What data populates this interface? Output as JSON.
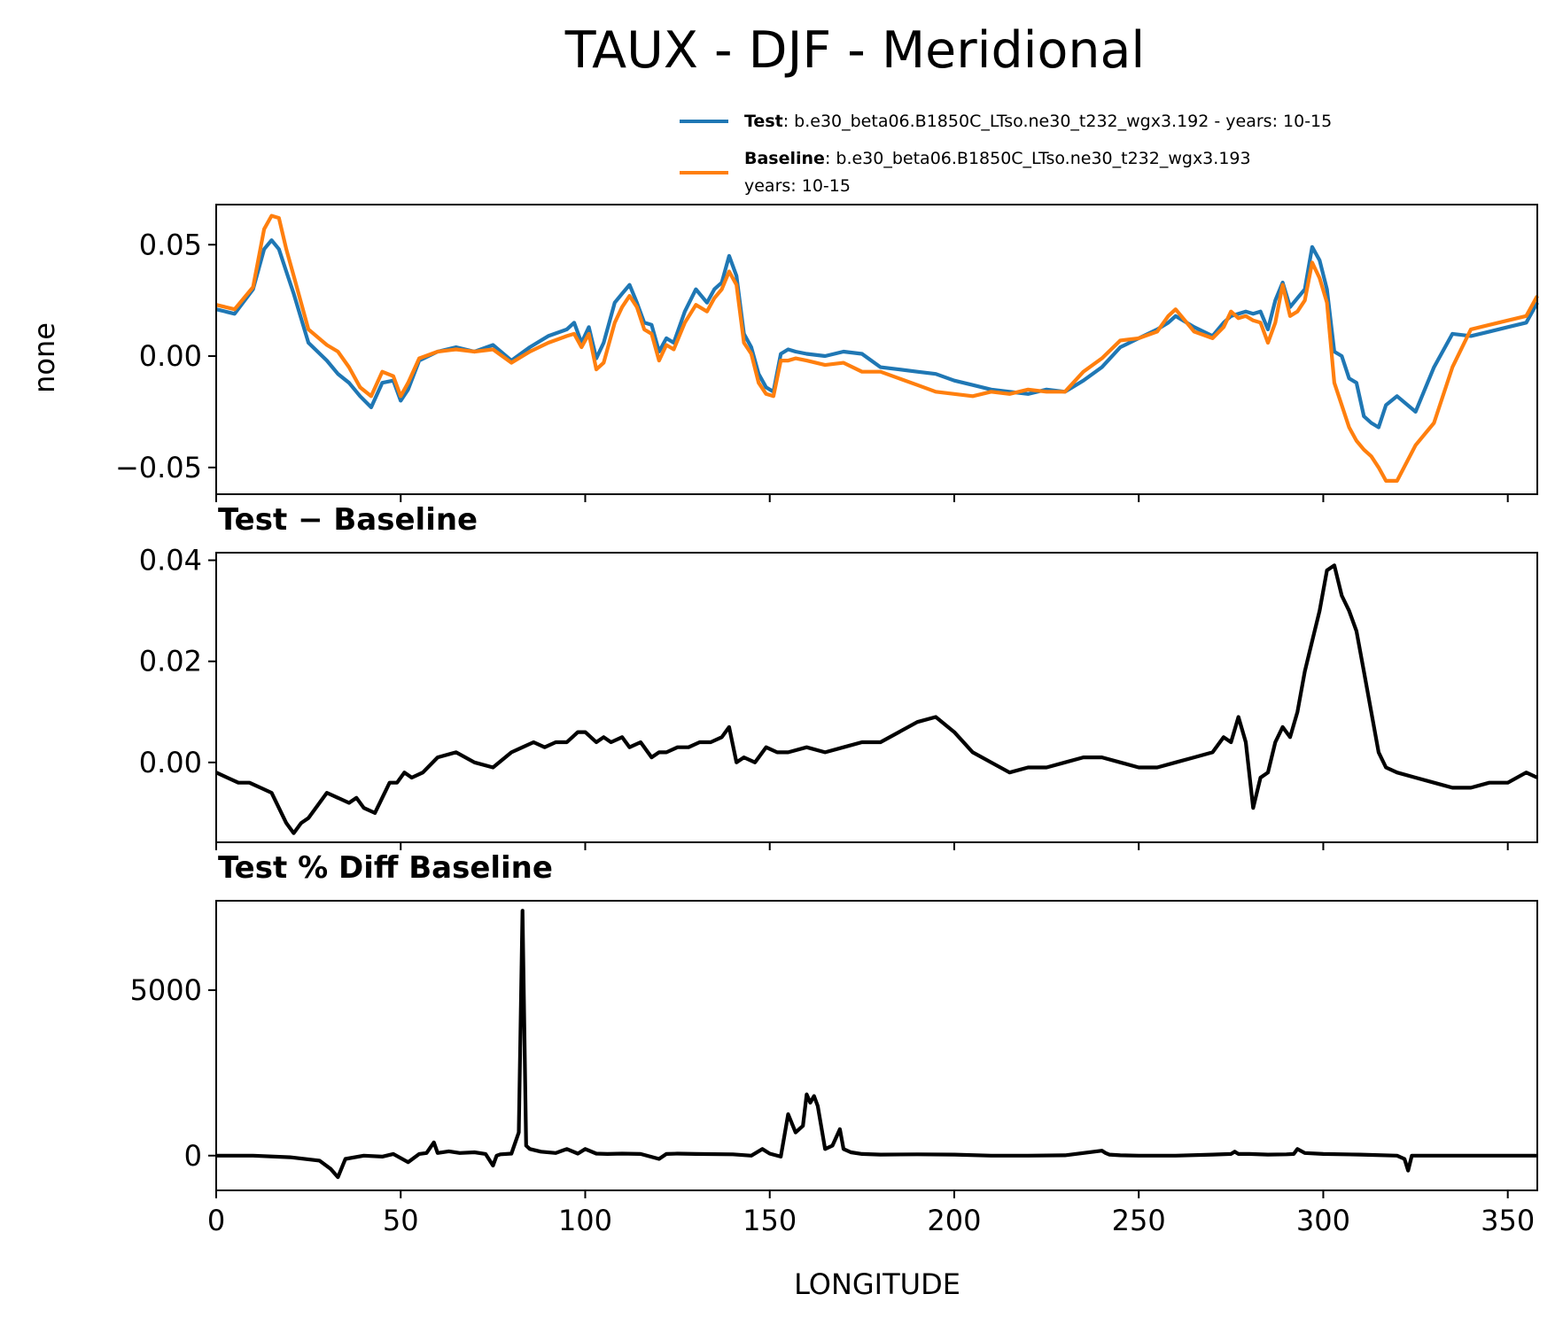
{
  "figure": {
    "title": "TAUX - DJF - Meridional"
  },
  "legend": {
    "test": {
      "bold": "Test",
      "text": ": b.e30_beta06.B1850C_LTso.ne30_t232_wgx3.192 - years: 10-15",
      "color": "#1f77b4"
    },
    "baseline": {
      "bold": "Baseline",
      "text": ": b.e30_beta06.B1850C_LTso.ne30_t232_wgx3.193",
      "text2": "years: 10-15",
      "color": "#ff7f0e"
    }
  },
  "chart_data": [
    {
      "type": "line",
      "ylabel": "none",
      "xlim": [
        0,
        358
      ],
      "ylim": [
        -0.062,
        0.068
      ],
      "yticks": [
        0.05,
        0.0,
        -0.05
      ],
      "ytick_labels": [
        "0.05",
        "0.00",
        "−0.05"
      ],
      "x": [
        0,
        5,
        10,
        13,
        15,
        17,
        19,
        21,
        25,
        30,
        33,
        36,
        39,
        42,
        45,
        48,
        50,
        52,
        55,
        60,
        65,
        70,
        75,
        80,
        85,
        90,
        95,
        97,
        99,
        101,
        103,
        105,
        108,
        110,
        112,
        114,
        116,
        118,
        120,
        122,
        124,
        127,
        130,
        133,
        135,
        137,
        139,
        141,
        143,
        145,
        147,
        149,
        151,
        153,
        155,
        157,
        160,
        165,
        170,
        175,
        180,
        185,
        190,
        195,
        200,
        205,
        210,
        215,
        220,
        225,
        230,
        235,
        240,
        245,
        250,
        255,
        258,
        260,
        265,
        270,
        273,
        275,
        277,
        279,
        281,
        283,
        285,
        287,
        289,
        291,
        293,
        295,
        297,
        299,
        301,
        303,
        305,
        307,
        309,
        311,
        313,
        315,
        317,
        320,
        325,
        330,
        335,
        340,
        345,
        350,
        355,
        358
      ],
      "series": [
        {
          "name": "Test",
          "color": "#1f77b4",
          "values": [
            0.021,
            0.019,
            0.03,
            0.048,
            0.052,
            0.048,
            0.038,
            0.028,
            0.006,
            -0.002,
            -0.008,
            -0.012,
            -0.018,
            -0.023,
            -0.012,
            -0.011,
            -0.02,
            -0.015,
            -0.002,
            0.002,
            0.004,
            0.002,
            0.005,
            -0.002,
            0.004,
            0.009,
            0.012,
            0.015,
            0.006,
            0.013,
            -0.001,
            0.006,
            0.024,
            0.028,
            0.032,
            0.024,
            0.015,
            0.014,
            0.002,
            0.008,
            0.006,
            0.02,
            0.03,
            0.024,
            0.03,
            0.033,
            0.045,
            0.036,
            0.01,
            0.004,
            -0.008,
            -0.014,
            -0.016,
            0.001,
            0.003,
            0.002,
            0.001,
            0.0,
            0.002,
            0.001,
            -0.005,
            -0.006,
            -0.007,
            -0.008,
            -0.011,
            -0.013,
            -0.015,
            -0.016,
            -0.017,
            -0.015,
            -0.016,
            -0.011,
            -0.005,
            0.004,
            0.008,
            0.012,
            0.015,
            0.018,
            0.013,
            0.009,
            0.015,
            0.018,
            0.019,
            0.02,
            0.019,
            0.02,
            0.012,
            0.025,
            0.033,
            0.022,
            0.026,
            0.03,
            0.049,
            0.043,
            0.03,
            0.002,
            0.0,
            -0.01,
            -0.012,
            -0.027,
            -0.03,
            -0.032,
            -0.022,
            -0.018,
            -0.025,
            -0.005,
            0.01,
            0.009,
            0.011,
            0.013,
            0.015,
            0.024
          ],
          "caption": "Test"
        },
        {
          "name": "Baseline",
          "color": "#ff7f0e",
          "values": [
            0.023,
            0.021,
            0.031,
            0.057,
            0.063,
            0.062,
            0.048,
            0.036,
            0.012,
            0.005,
            0.002,
            -0.005,
            -0.014,
            -0.018,
            -0.007,
            -0.009,
            -0.018,
            -0.012,
            -0.001,
            0.002,
            0.003,
            0.002,
            0.003,
            -0.003,
            0.002,
            0.006,
            0.009,
            0.01,
            0.004,
            0.01,
            -0.006,
            -0.003,
            0.015,
            0.022,
            0.027,
            0.022,
            0.012,
            0.01,
            -0.002,
            0.005,
            0.003,
            0.015,
            0.023,
            0.02,
            0.026,
            0.03,
            0.038,
            0.032,
            0.006,
            0.001,
            -0.012,
            -0.017,
            -0.018,
            -0.002,
            -0.002,
            -0.001,
            -0.002,
            -0.004,
            -0.003,
            -0.007,
            -0.007,
            -0.01,
            -0.013,
            -0.016,
            -0.017,
            -0.018,
            -0.016,
            -0.017,
            -0.015,
            -0.016,
            -0.016,
            -0.007,
            -0.001,
            0.007,
            0.008,
            0.011,
            0.018,
            0.021,
            0.011,
            0.008,
            0.013,
            0.02,
            0.017,
            0.018,
            0.016,
            0.015,
            0.006,
            0.015,
            0.032,
            0.018,
            0.02,
            0.025,
            0.042,
            0.035,
            0.024,
            -0.012,
            -0.022,
            -0.032,
            -0.038,
            -0.042,
            -0.045,
            -0.05,
            -0.056,
            -0.056,
            -0.04,
            -0.03,
            -0.005,
            0.012,
            0.014,
            0.016,
            0.018,
            0.027
          ],
          "caption": "Baseline"
        }
      ]
    },
    {
      "type": "line",
      "title": "Test − Baseline",
      "xlim": [
        0,
        358
      ],
      "ylim": [
        -0.0158,
        0.0415
      ],
      "yticks": [
        0.04,
        0.02,
        0.0
      ],
      "ytick_labels": [
        "0.04",
        "0.02",
        "0.00"
      ],
      "x": [
        0,
        3,
        6,
        9,
        12,
        15,
        17,
        19,
        21,
        23,
        25,
        28,
        30,
        33,
        36,
        38,
        40,
        43,
        45,
        47,
        49,
        51,
        53,
        56,
        60,
        65,
        70,
        75,
        80,
        83,
        86,
        89,
        92,
        95,
        98,
        100,
        103,
        105,
        107,
        110,
        112,
        115,
        118,
        120,
        122,
        125,
        128,
        131,
        134,
        137,
        139,
        141,
        143,
        146,
        149,
        152,
        155,
        160,
        165,
        170,
        175,
        180,
        185,
        190,
        195,
        200,
        205,
        210,
        215,
        220,
        225,
        230,
        235,
        240,
        245,
        250,
        255,
        260,
        265,
        270,
        273,
        275,
        277,
        279,
        281,
        283,
        285,
        287,
        289,
        291,
        293,
        295,
        297,
        299,
        301,
        303,
        305,
        307,
        309,
        311,
        313,
        315,
        317,
        320,
        325,
        330,
        335,
        340,
        345,
        350,
        355,
        358
      ],
      "series": [
        {
          "name": "Test − Baseline",
          "color": "#000000",
          "values": [
            -0.002,
            -0.003,
            -0.004,
            -0.004,
            -0.005,
            -0.006,
            -0.009,
            -0.012,
            -0.014,
            -0.012,
            -0.011,
            -0.008,
            -0.006,
            -0.007,
            -0.008,
            -0.007,
            -0.009,
            -0.01,
            -0.007,
            -0.004,
            -0.004,
            -0.002,
            -0.003,
            -0.002,
            0.001,
            0.002,
            0.0,
            -0.001,
            0.002,
            0.003,
            0.004,
            0.003,
            0.004,
            0.004,
            0.006,
            0.006,
            0.004,
            0.005,
            0.004,
            0.005,
            0.003,
            0.004,
            0.001,
            0.002,
            0.002,
            0.003,
            0.003,
            0.004,
            0.004,
            0.005,
            0.007,
            0.0,
            0.001,
            0.0,
            0.003,
            0.002,
            0.002,
            0.003,
            0.002,
            0.003,
            0.004,
            0.004,
            0.006,
            0.008,
            0.009,
            0.006,
            0.002,
            0.0,
            -0.002,
            -0.001,
            -0.001,
            0.0,
            0.001,
            0.001,
            0.0,
            -0.001,
            -0.001,
            0.0,
            0.001,
            0.002,
            0.005,
            0.004,
            0.009,
            0.004,
            -0.009,
            -0.003,
            -0.002,
            0.004,
            0.007,
            0.005,
            0.01,
            0.018,
            0.024,
            0.03,
            0.038,
            0.039,
            0.033,
            0.03,
            0.026,
            0.018,
            0.01,
            0.002,
            -0.001,
            -0.002,
            -0.003,
            -0.004,
            -0.005,
            -0.005,
            -0.004,
            -0.004,
            -0.002,
            -0.003
          ]
        }
      ]
    },
    {
      "type": "line",
      "title": "Test % Diff Baseline",
      "xlabel": "LONGITUDE",
      "xlim": [
        0,
        358
      ],
      "ylim": [
        -1050,
        7700
      ],
      "yticks": [
        5000,
        0
      ],
      "ytick_labels": [
        "5000",
        "0"
      ],
      "xticks": [
        0,
        50,
        100,
        150,
        200,
        250,
        300,
        350
      ],
      "xtick_labels": [
        "0",
        "50",
        "100",
        "150",
        "200",
        "250",
        "300",
        "350"
      ],
      "x": [
        0,
        10,
        20,
        28,
        31,
        33,
        35,
        40,
        45,
        48,
        52,
        55,
        57,
        59,
        60,
        63,
        66,
        70,
        73,
        75,
        76,
        77,
        80,
        82,
        83,
        84,
        85,
        88,
        92,
        95,
        98,
        100,
        103,
        106,
        110,
        115,
        120,
        122,
        125,
        130,
        140,
        145,
        148,
        150,
        153,
        155,
        157,
        159,
        160,
        161,
        162,
        163,
        165,
        167,
        169,
        170,
        172,
        175,
        180,
        190,
        200,
        210,
        220,
        230,
        240,
        241,
        242,
        245,
        250,
        260,
        270,
        275,
        276,
        277,
        280,
        285,
        290,
        292,
        293,
        295,
        300,
        310,
        320,
        322,
        323,
        324,
        326,
        330,
        340,
        350,
        358
      ],
      "series": [
        {
          "name": "Test % Diff Baseline",
          "color": "#000000",
          "values": [
            0,
            0,
            -50,
            -150,
            -400,
            -650,
            -100,
            0,
            -30,
            50,
            -200,
            50,
            80,
            400,
            80,
            130,
            80,
            100,
            50,
            -300,
            0,
            40,
            60,
            700,
            7400,
            300,
            200,
            120,
            80,
            200,
            60,
            200,
            60,
            50,
            60,
            50,
            -100,
            50,
            60,
            50,
            40,
            0,
            200,
            60,
            -30,
            1250,
            700,
            900,
            1850,
            1600,
            1800,
            1500,
            200,
            300,
            800,
            200,
            100,
            50,
            30,
            40,
            30,
            0,
            0,
            10,
            150,
            80,
            30,
            10,
            0,
            0,
            30,
            50,
            120,
            50,
            50,
            30,
            40,
            50,
            200,
            80,
            50,
            30,
            0,
            -100,
            -450,
            0,
            0,
            0,
            0,
            0,
            0
          ]
        }
      ]
    }
  ]
}
